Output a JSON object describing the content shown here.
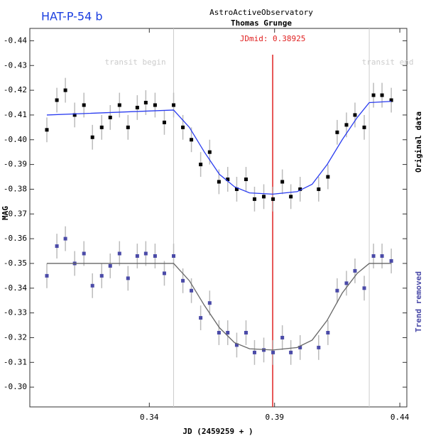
{
  "chart_data": {
    "type": "scatter",
    "title": "HAT-P-54 b",
    "observatory": "AstroActiveObservatory",
    "observer": "Thomas Grunge",
    "x_label": "JD (2459259 + )",
    "y_label": "MAG",
    "xlim": [
      0.2923,
      0.4428
    ],
    "ylim": [
      -0.292,
      -0.445
    ],
    "xticks": [
      0.34,
      0.39,
      0.44
    ],
    "yticks": [
      -0.44,
      -0.43,
      -0.42,
      -0.41,
      {
        "value": -0.4,
        "label": "-0.40"
      },
      -0.39,
      -0.38,
      -0.37,
      -0.36,
      -0.35,
      -0.34,
      -0.33,
      -0.32,
      -0.31,
      {
        "value": -0.3,
        "label": "-0.30"
      }
    ],
    "x": [
      0.2991,
      0.3031,
      0.3065,
      0.3102,
      0.3139,
      0.3173,
      0.321,
      0.3244,
      0.3281,
      0.3315,
      0.3352,
      0.3386,
      0.3423,
      0.346,
      0.3497,
      0.3534,
      0.3568,
      0.3605,
      0.3641,
      0.3678,
      0.3713,
      0.3749,
      0.3786,
      0.382,
      0.3857,
      0.3894,
      0.3931,
      0.3965,
      0.4002,
      0.4076,
      0.4113,
      0.415,
      0.4187,
      0.4221,
      0.4258,
      0.4295,
      0.4329,
      0.4366
    ],
    "series": [
      {
        "name": "Original data",
        "color": "#000000",
        "error": 0.005,
        "values": [
          -0.404,
          -0.416,
          -0.42,
          -0.41,
          -0.414,
          -0.401,
          -0.405,
          -0.409,
          -0.414,
          -0.405,
          -0.413,
          -0.415,
          -0.414,
          -0.407,
          -0.414,
          -0.405,
          -0.4,
          -0.39,
          -0.395,
          -0.383,
          -0.384,
          -0.38,
          -0.384,
          -0.376,
          -0.377,
          -0.376,
          -0.383,
          -0.377,
          -0.38,
          -0.38,
          -0.385,
          -0.403,
          -0.406,
          -0.41,
          -0.405,
          -0.418,
          -0.418,
          -0.416
        ]
      },
      {
        "name": "Trend removed",
        "color": "#4a4aa8",
        "error": 0.005,
        "values": [
          -0.345,
          -0.357,
          -0.36,
          -0.35,
          -0.354,
          -0.341,
          -0.345,
          -0.349,
          -0.354,
          -0.344,
          -0.353,
          -0.354,
          -0.353,
          -0.346,
          -0.353,
          -0.343,
          -0.339,
          -0.328,
          -0.334,
          -0.322,
          -0.322,
          -0.317,
          -0.322,
          -0.314,
          -0.315,
          -0.314,
          -0.32,
          -0.314,
          -0.316,
          -0.316,
          -0.322,
          -0.339,
          -0.342,
          -0.347,
          -0.34,
          -0.353,
          -0.353,
          -0.351
        ]
      }
    ],
    "fit_x": [
      0.2991,
      0.3497,
      0.356,
      0.362,
      0.368,
      0.374,
      0.38,
      0.3893,
      0.399,
      0.405,
      0.411,
      0.417,
      0.423,
      0.4278,
      0.4366
    ],
    "fits": [
      {
        "color": "#2a3cf0",
        "values": [
          -0.41,
          -0.412,
          -0.405,
          -0.395,
          -0.386,
          -0.381,
          -0.3785,
          -0.378,
          -0.379,
          -0.382,
          -0.39,
          -0.4,
          -0.409,
          -0.415,
          -0.4155
        ]
      },
      {
        "color": "#666666",
        "values": [
          -0.35,
          -0.35,
          -0.343,
          -0.333,
          -0.324,
          -0.318,
          -0.3155,
          -0.315,
          -0.316,
          -0.319,
          -0.327,
          -0.338,
          -0.346,
          -0.35,
          -0.35
        ]
      }
    ],
    "markers": [
      {
        "label": "transit begin",
        "x": 0.3497,
        "color": "#cccccc"
      },
      {
        "label": "transit end",
        "x": 0.4278,
        "color": "#cccccc"
      }
    ],
    "mid": {
      "label": "JDmid: 0.38925",
      "x": 0.38925,
      "color": "#e02020"
    }
  }
}
